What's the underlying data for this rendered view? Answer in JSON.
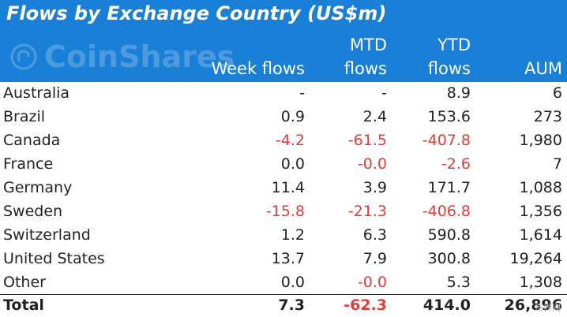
{
  "chart_data": {
    "type": "table",
    "title": "Flows by Exchange Country (US$m)",
    "watermark": "CoinShares",
    "columns": [
      "",
      "Week flows",
      "MTD flows",
      "YTD flows",
      "AUM"
    ],
    "header_lines": {
      "week": [
        "",
        "Week flows"
      ],
      "mtd": [
        "MTD",
        "flows"
      ],
      "ytd": [
        "YTD",
        "flows"
      ],
      "aum": [
        "",
        "AUM"
      ]
    },
    "rows": [
      {
        "country": "Australia",
        "week": "-",
        "mtd": "-",
        "ytd": "8.9",
        "aum": "6"
      },
      {
        "country": "Brazil",
        "week": "0.9",
        "mtd": "2.4",
        "ytd": "153.6",
        "aum": "273"
      },
      {
        "country": "Canada",
        "week": "-4.2",
        "mtd": "-61.5",
        "ytd": "-407.8",
        "aum": "1,980"
      },
      {
        "country": "France",
        "week": "0.0",
        "mtd": "-0.0",
        "ytd": "-2.6",
        "aum": "7"
      },
      {
        "country": "Germany",
        "week": "11.4",
        "mtd": "3.9",
        "ytd": "171.7",
        "aum": "1,088"
      },
      {
        "country": "Sweden",
        "week": "-15.8",
        "mtd": "-21.3",
        "ytd": "-406.8",
        "aum": "1,356"
      },
      {
        "country": "Switzerland",
        "week": "1.2",
        "mtd": "6.3",
        "ytd": "590.8",
        "aum": "1,614"
      },
      {
        "country": "United States",
        "week": "13.7",
        "mtd": "7.9",
        "ytd": "300.8",
        "aum": "19,264"
      },
      {
        "country": "Other",
        "week": "0.0",
        "mtd": "-0.0",
        "ytd": "5.3",
        "aum": "1,308"
      }
    ],
    "total": {
      "country": "Total",
      "week": "7.3",
      "mtd": "-62.3",
      "ytd": "414.0",
      "aum": "26,896"
    }
  },
  "colors": {
    "header_bg": "#1a7fd6",
    "negative": "#e43a3a",
    "text": "#222222"
  },
  "corner_watermark": "币界网"
}
